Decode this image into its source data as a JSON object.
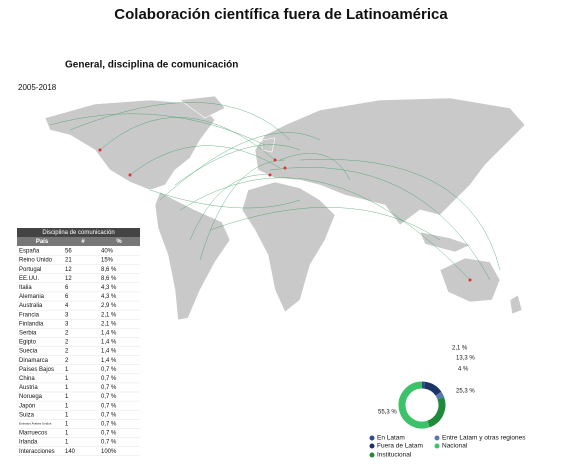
{
  "header": {
    "title": "Colaboración científica fuera de Latinoamérica",
    "subtitle": "General, disciplina de comunicación",
    "period": "2005-2018"
  },
  "table": {
    "title": "Disciplina de comunicación",
    "columns": [
      "País",
      "#",
      "%"
    ],
    "rows": [
      [
        "España",
        56,
        "40%"
      ],
      [
        "Reino Unido",
        21,
        "15%"
      ],
      [
        "Portugal",
        12,
        "8,6 %"
      ],
      [
        "EE.UU.",
        12,
        "8,6 %"
      ],
      [
        "Italia",
        6,
        "4,3 %"
      ],
      [
        "Alemania",
        6,
        "4,3 %"
      ],
      [
        "Australia",
        4,
        "2,9 %"
      ],
      [
        "Francia",
        3,
        "2,1 %"
      ],
      [
        "Finlandia",
        3,
        "2,1 %"
      ],
      [
        "Serbia",
        2,
        "1,4 %"
      ],
      [
        "Egipto",
        2,
        "1,4 %"
      ],
      [
        "Suecia",
        2,
        "1,4 %"
      ],
      [
        "Dinamarca",
        2,
        "1,4 %"
      ],
      [
        "Países Bajos",
        1,
        "0,7 %"
      ],
      [
        "China",
        1,
        "0,7 %"
      ],
      [
        "Austria",
        1,
        "0,7 %"
      ],
      [
        "Noruega",
        1,
        "0,7 %"
      ],
      [
        "Japón",
        1,
        "0,7 %"
      ],
      [
        "Suiza",
        1,
        "0,7 %"
      ],
      [
        "Emiratos Árabes Unidos",
        1,
        "0,7 %"
      ],
      [
        "Marruecos",
        1,
        "0,7 %"
      ],
      [
        "Irlanda",
        1,
        "0,7 %"
      ],
      [
        "Interacciones",
        140,
        "100%"
      ]
    ]
  },
  "donut": {
    "segments": [
      {
        "name": "En Latam",
        "color": "#2b4d8c",
        "value": 2.1,
        "label": "2,1 %"
      },
      {
        "name": "Fuera de Latam",
        "color": "#1c3566",
        "value": 13.3,
        "label": "13,3 %"
      },
      {
        "name": "Institucional",
        "color": "#1f8a3a",
        "value": 25.3,
        "label": "25,3 %"
      },
      {
        "name": "Entre Latam y otras regiones",
        "color": "#5a78b5",
        "value": 4,
        "label": "4 %"
      },
      {
        "name": "Nacional",
        "color": "#3cc36a",
        "value": 55.3,
        "label": "55,3 %"
      }
    ]
  }
}
